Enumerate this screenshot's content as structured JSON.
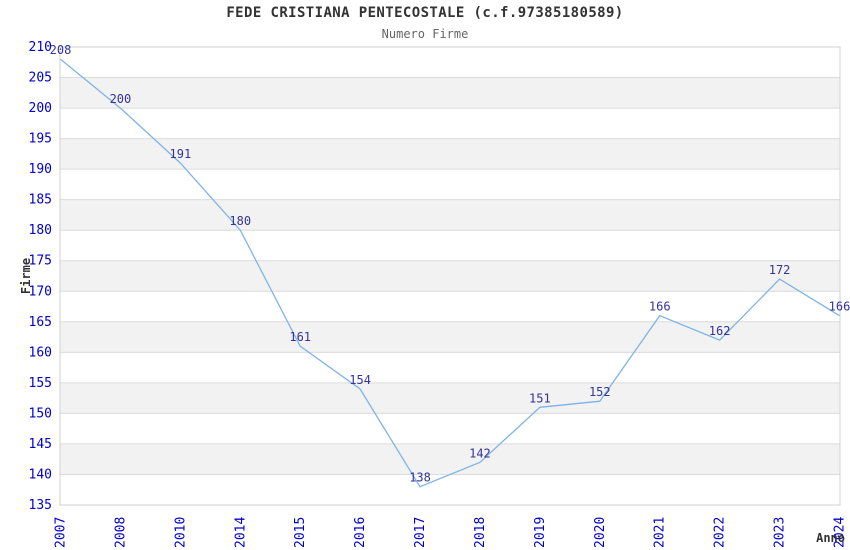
{
  "header": {
    "title": "FEDE CRISTIANA PENTECOSTALE (c.f.97385180589)",
    "subtitle": "Numero Firme"
  },
  "chart_data": {
    "type": "line",
    "title": "FEDE CRISTIANA PENTECOSTALE (c.f.97385180589)",
    "subtitle": "Numero Firme",
    "xlabel": "Anno",
    "ylabel": "Firme",
    "categories": [
      "2007",
      "2008",
      "2010",
      "2014",
      "2015",
      "2016",
      "2017",
      "2018",
      "2019",
      "2020",
      "2021",
      "2022",
      "2023",
      "2024"
    ],
    "series": [
      {
        "name": "Numero Firme",
        "values": [
          208,
          200,
          191,
          180,
          161,
          154,
          138,
          142,
          151,
          152,
          166,
          162,
          172,
          166
        ]
      }
    ],
    "ylim": [
      135,
      210
    ],
    "ytick_step": 5,
    "grid": "horizontal-bands",
    "legend": "none",
    "data_labels_visible": true,
    "x_tick_rotation": -90,
    "colors": {
      "line": "#7eb3e8",
      "tick_label": "#0000cc",
      "data_label": "#333399",
      "band": "#f2f2f2",
      "gridline": "#dcdcdc",
      "border": "#d0d0d0",
      "title": "#333333",
      "subtitle": "#666666",
      "axis_title": "#333333",
      "background": "#ffffff"
    }
  }
}
